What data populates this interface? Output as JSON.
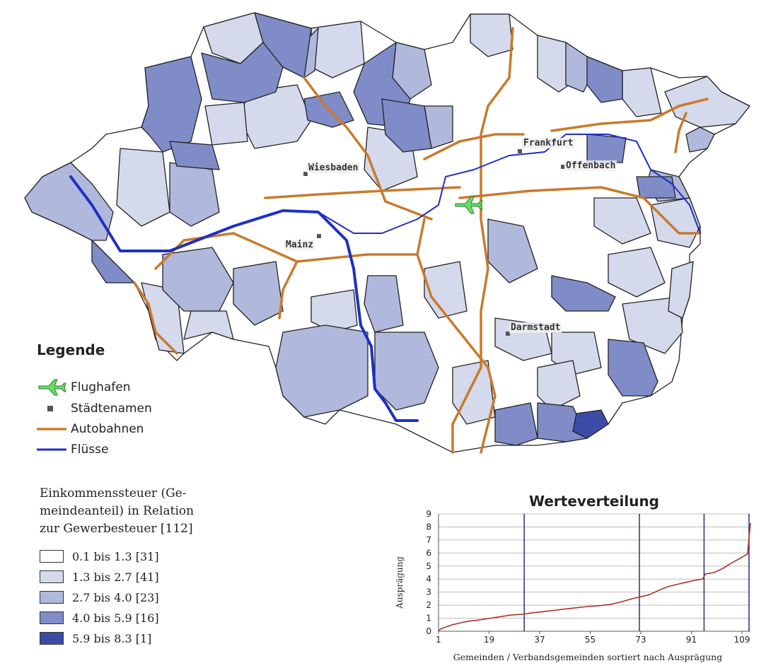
{
  "legend": {
    "title": "Legende",
    "items": [
      {
        "symbol": "airplane-icon",
        "label": "Flughafen"
      },
      {
        "symbol": "square-marker",
        "label": "Städtenamen"
      },
      {
        "symbol": "orange-line",
        "label": "Autobahnen"
      },
      {
        "symbol": "blue-line",
        "label": "Flüsse"
      }
    ]
  },
  "cities": [
    {
      "name": "Frankfurt"
    },
    {
      "name": "Offenbach"
    },
    {
      "name": "Wiesbaden"
    },
    {
      "name": "Mainz"
    },
    {
      "name": "Darmstadt"
    }
  ],
  "classification": {
    "title": "Einkommenssteuer (Ge-meindeanteil) in Relation zur Gewerbesteuer [112]",
    "classes": [
      {
        "label": "0.1 bis 1.3  [31]",
        "color": "#ffffff"
      },
      {
        "label": "1.3 bis 2.7  [41]",
        "color": "#d5d9ec"
      },
      {
        "label": "2.7 bis 4.0  [23]",
        "color": "#b0b8dc"
      },
      {
        "label": "4.0 bis 5.9  [16]",
        "color": "#7f8cc8"
      },
      {
        "label": "5.9 bis 8.3  [1]",
        "color": "#3d4ba6"
      }
    ]
  },
  "colors": {
    "highway": "#c97a2c",
    "river": "#1f2fc4",
    "airport": "#66dd66",
    "border": "#222222",
    "chart_line": "#a83228",
    "class_break_line": "#1c2470"
  },
  "chart_data": {
    "type": "line",
    "title": "Werteverteilung",
    "xlabel": "Gemeinden / Verbandsgemeinden sortiert nach Ausprägung",
    "ylabel": "Ausprägung",
    "xlim": [
      1,
      112
    ],
    "ylim": [
      0,
      9
    ],
    "x_ticks": [
      1,
      19,
      37,
      55,
      73,
      91,
      109
    ],
    "y_ticks": [
      0,
      1,
      2,
      3,
      4,
      5,
      6,
      7,
      8,
      9
    ],
    "grid": true,
    "class_breaks_at": [
      31.5,
      72.5,
      95.5,
      111.5
    ],
    "series": [
      {
        "points": [
          [
            1,
            0.05
          ],
          [
            2,
            0.2
          ],
          [
            4,
            0.35
          ],
          [
            6,
            0.5
          ],
          [
            8,
            0.6
          ],
          [
            10,
            0.7
          ],
          [
            12,
            0.78
          ],
          [
            15,
            0.85
          ],
          [
            18,
            0.95
          ],
          [
            21,
            1.05
          ],
          [
            24,
            1.15
          ],
          [
            27,
            1.25
          ],
          [
            31,
            1.3
          ],
          [
            34,
            1.4
          ],
          [
            38,
            1.5
          ],
          [
            42,
            1.6
          ],
          [
            46,
            1.7
          ],
          [
            50,
            1.8
          ],
          [
            54,
            1.9
          ],
          [
            58,
            1.95
          ],
          [
            62,
            2.05
          ],
          [
            66,
            2.25
          ],
          [
            70,
            2.5
          ],
          [
            73,
            2.65
          ],
          [
            76,
            2.8
          ],
          [
            78,
            3.0
          ],
          [
            80,
            3.2
          ],
          [
            83,
            3.45
          ],
          [
            86,
            3.6
          ],
          [
            89,
            3.75
          ],
          [
            92,
            3.9
          ],
          [
            95,
            4.0
          ],
          [
            96,
            4.4
          ],
          [
            99,
            4.5
          ],
          [
            102,
            4.8
          ],
          [
            105,
            5.2
          ],
          [
            108,
            5.55
          ],
          [
            110,
            5.8
          ],
          [
            111,
            5.95
          ],
          [
            112,
            8.3
          ]
        ]
      }
    ]
  }
}
